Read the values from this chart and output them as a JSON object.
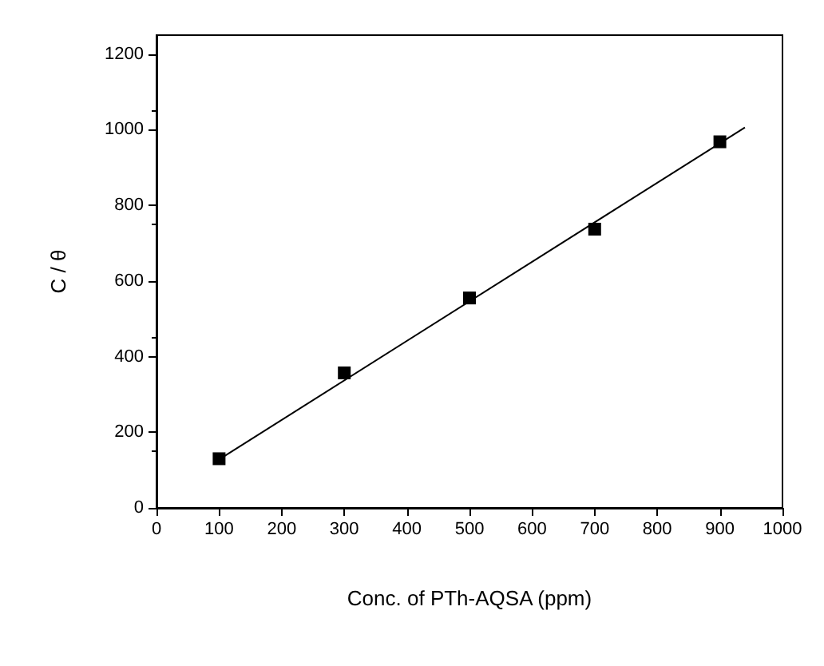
{
  "chart_data": {
    "type": "scatter",
    "xlabel": "Conc. of PTh-AQSA (ppm)",
    "ylabel": "C / θ",
    "x": [
      100,
      300,
      500,
      700,
      900
    ],
    "series": [
      {
        "color": "#000000",
        "marker": "square",
        "values": [
          130,
          357,
          555,
          737,
          968
        ]
      },
      {
        "type": "line",
        "color": "#000000",
        "marker": "none",
        "line_style": "solid",
        "x": [
          100,
          940
        ],
        "values": [
          128,
          1006
        ]
      }
    ],
    "xlim": [
      0,
      1000
    ],
    "xticks": [
      0,
      100,
      200,
      300,
      400,
      500,
      600,
      700,
      800,
      900,
      1000
    ],
    "ylim": [
      0,
      1250
    ],
    "yticks": [
      0,
      200,
      400,
      600,
      800,
      1000,
      1200
    ],
    "grid": false
  }
}
